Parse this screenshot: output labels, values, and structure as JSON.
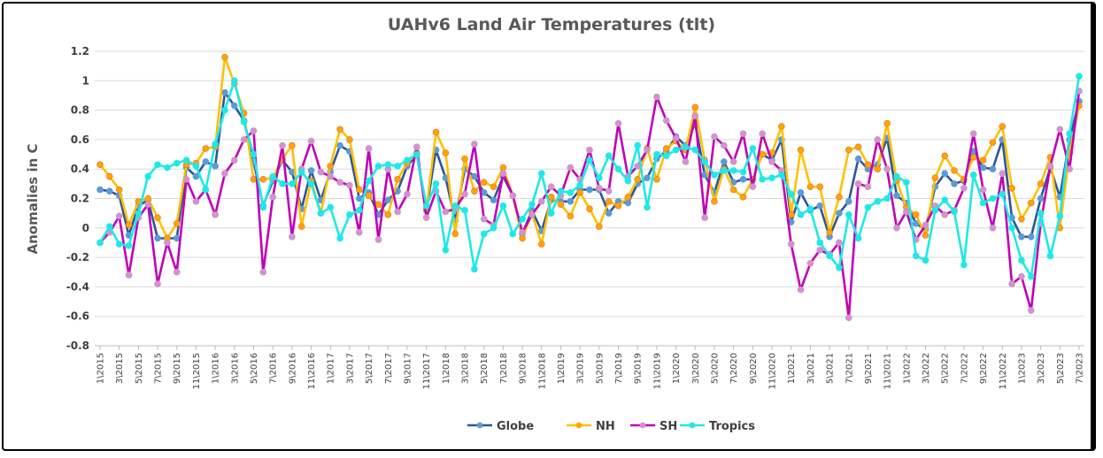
{
  "chart_data": {
    "type": "line",
    "title": "UAHv6 Land Air Temperatures (tlt)",
    "xlabel": "",
    "ylabel": "Anomalies in C",
    "ylim": [
      -0.8,
      1.2
    ],
    "yticks": [
      "1.2",
      "1",
      "0.8",
      "0.6",
      "0.4",
      "0.2",
      "0",
      "-0.2",
      "-0.4",
      "-0.6",
      "-0.8"
    ],
    "grid": true,
    "legend_position": "bottom",
    "x_tick_labels": [
      "1\\2015",
      "3\\2015",
      "5\\2015",
      "7\\2015",
      "9\\2015",
      "11\\2015",
      "1\\2016",
      "3\\2016",
      "5\\2016",
      "7\\2016",
      "9\\2016",
      "11\\2016",
      "1\\2017",
      "3\\2017",
      "5\\2017",
      "7\\2017",
      "9\\2017",
      "11\\2017",
      "1\\2018",
      "3\\2018",
      "5\\2018",
      "7\\2018",
      "9\\2018",
      "11\\2018",
      "1\\2019",
      "3\\2019",
      "5\\2019",
      "7\\2019",
      "9\\2019",
      "11\\2019",
      "1\\2020",
      "3\\2020",
      "5\\2020",
      "7\\2020",
      "9\\2020",
      "11\\2020",
      "1\\2021",
      "3\\2021",
      "5\\2021",
      "7\\2021",
      "9\\2021",
      "11\\2021",
      "1\\2022",
      "3\\2022",
      "5\\2022",
      "7\\2022",
      "9\\2022",
      "11\\2022",
      "1\\2023",
      "3\\2023",
      "5\\2023",
      "7\\2023"
    ],
    "series": [
      {
        "name": "Globe",
        "line_color": "#2f5597",
        "marker_color": "#5b9bd5",
        "values": [
          0.26,
          0.25,
          0.22,
          -0.05,
          0.15,
          0.19,
          -0.07,
          -0.07,
          -0.07,
          0.41,
          0.35,
          0.45,
          0.42,
          0.92,
          0.83,
          0.73,
          0.45,
          0.15,
          0.32,
          0.46,
          0.38,
          0.13,
          0.39,
          0.19,
          0.38,
          0.56,
          0.52,
          0.2,
          0.24,
          0.09,
          0.19,
          0.25,
          0.42,
          0.5,
          0.12,
          0.53,
          0.34,
          0.05,
          0.4,
          0.35,
          0.24,
          0.19,
          0.35,
          0.22,
          -0.04,
          0.12,
          -0.02,
          0.19,
          0.18,
          0.18,
          0.26,
          0.26,
          0.26,
          0.1,
          0.18,
          0.17,
          0.3,
          0.34,
          0.47,
          0.52,
          0.62,
          0.56,
          0.71,
          0.36,
          0.24,
          0.45,
          0.31,
          0.33,
          0.33,
          0.5,
          0.46,
          0.6,
          0.04,
          0.24,
          0.12,
          0.15,
          -0.06,
          0.1,
          0.18,
          0.47,
          0.4,
          0.43,
          0.61,
          0.22,
          0.17,
          0.03,
          -0.01,
          0.28,
          0.37,
          0.3,
          0.32,
          0.52,
          0.41,
          0.4,
          0.6,
          0.07,
          -0.06,
          -0.06,
          0.2,
          0.41,
          0.21,
          0.6,
          0.86
        ]
      },
      {
        "name": "NH",
        "line_color": "#ffc000",
        "marker_color": "#ffa500",
        "values": [
          0.43,
          0.35,
          0.26,
          0.02,
          0.18,
          0.2,
          0.07,
          -0.07,
          0.03,
          0.43,
          0.44,
          0.54,
          0.55,
          1.16,
          0.98,
          0.78,
          0.33,
          0.33,
          0.34,
          0.47,
          0.56,
          0.01,
          0.32,
          0.1,
          0.42,
          0.67,
          0.6,
          0.26,
          0.22,
          0.16,
          0.09,
          0.33,
          0.44,
          0.51,
          0.13,
          0.65,
          0.51,
          -0.04,
          0.47,
          0.25,
          0.31,
          0.28,
          0.41,
          0.22,
          -0.07,
          0.1,
          -0.11,
          0.21,
          0.16,
          0.08,
          0.24,
          0.13,
          0.01,
          0.18,
          0.15,
          0.21,
          0.33,
          0.54,
          0.33,
          0.54,
          0.59,
          0.53,
          0.82,
          0.46,
          0.18,
          0.4,
          0.26,
          0.21,
          0.33,
          0.5,
          0.51,
          0.69,
          0.09,
          0.53,
          0.28,
          0.28,
          -0.03,
          0.21,
          0.53,
          0.55,
          0.43,
          0.4,
          0.71,
          0.32,
          0.14,
          0.09,
          -0.05,
          0.34,
          0.49,
          0.39,
          0.33,
          0.48,
          0.46,
          0.58,
          0.69,
          0.27,
          0.06,
          0.17,
          0.3,
          0.48,
          0.0,
          0.51,
          0.83
        ]
      },
      {
        "name": "SH",
        "line_color": "#c000b8",
        "marker_color": "#e08ad8",
        "values": [
          -0.1,
          -0.03,
          0.08,
          -0.32,
          0.07,
          0.16,
          -0.38,
          -0.1,
          -0.3,
          0.33,
          0.18,
          0.26,
          0.09,
          0.37,
          0.46,
          0.6,
          0.66,
          -0.3,
          0.21,
          0.56,
          -0.06,
          0.4,
          0.59,
          0.38,
          0.35,
          0.31,
          0.29,
          -0.03,
          0.54,
          -0.08,
          0.4,
          0.11,
          0.23,
          0.55,
          0.07,
          0.25,
          0.11,
          0.13,
          0.23,
          0.57,
          0.06,
          0.02,
          0.37,
          0.22,
          -0.03,
          0.09,
          0.18,
          0.28,
          0.22,
          0.41,
          0.33,
          0.53,
          0.27,
          0.25,
          0.71,
          0.35,
          0.42,
          0.53,
          0.89,
          0.73,
          0.61,
          0.45,
          0.76,
          0.07,
          0.62,
          0.56,
          0.45,
          0.64,
          0.28,
          0.64,
          0.45,
          0.39,
          -0.11,
          -0.42,
          -0.24,
          -0.15,
          -0.18,
          -0.1,
          -0.61,
          0.3,
          0.28,
          0.6,
          0.4,
          0.0,
          0.11,
          -0.08,
          0.02,
          0.15,
          0.09,
          0.12,
          0.27,
          0.64,
          0.26,
          0.0,
          0.37,
          -0.38,
          -0.33,
          -0.56,
          0.03,
          0.42,
          0.67,
          0.4,
          0.93
        ]
      },
      {
        "name": "Tropics",
        "line_color": "#1ee8e8",
        "marker_color": "#1ee8e8",
        "values": [
          -0.1,
          0.01,
          -0.11,
          -0.12,
          0.1,
          0.35,
          0.43,
          0.41,
          0.44,
          0.46,
          0.42,
          0.26,
          0.57,
          0.8,
          1.0,
          0.72,
          0.5,
          0.14,
          0.35,
          0.3,
          0.3,
          0.38,
          0.3,
          0.1,
          0.14,
          -0.07,
          0.09,
          0.12,
          0.32,
          0.42,
          0.43,
          0.42,
          0.46,
          0.5,
          0.15,
          0.3,
          -0.15,
          0.15,
          0.12,
          -0.28,
          -0.04,
          0.0,
          0.15,
          -0.04,
          0.06,
          0.16,
          0.37,
          0.1,
          0.25,
          0.24,
          0.29,
          0.46,
          0.34,
          0.49,
          0.4,
          0.32,
          0.56,
          0.14,
          0.5,
          0.49,
          0.53,
          0.55,
          0.53,
          0.45,
          0.36,
          0.39,
          0.39,
          0.38,
          0.54,
          0.33,
          0.34,
          0.36,
          0.23,
          0.09,
          0.13,
          -0.1,
          -0.19,
          -0.27,
          0.09,
          -0.07,
          0.14,
          0.18,
          0.2,
          0.35,
          0.31,
          -0.19,
          -0.22,
          0.12,
          0.19,
          0.11,
          -0.25,
          0.36,
          0.17,
          0.2,
          0.23,
          0.0,
          -0.22,
          -0.33,
          0.1,
          -0.19,
          0.08,
          0.64,
          1.03
        ]
      }
    ]
  }
}
